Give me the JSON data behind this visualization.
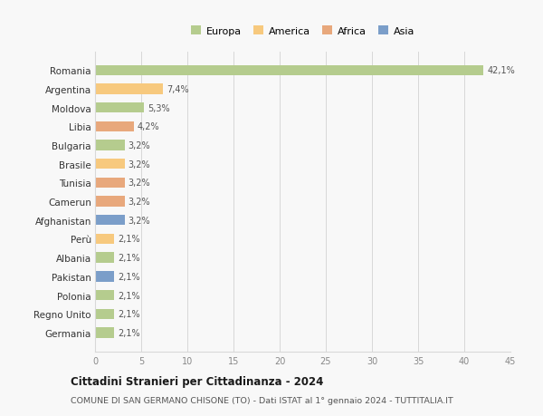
{
  "countries": [
    "Romania",
    "Argentina",
    "Moldova",
    "Libia",
    "Bulgaria",
    "Brasile",
    "Tunisia",
    "Camerun",
    "Afghanistan",
    "Perù",
    "Albania",
    "Pakistan",
    "Polonia",
    "Regno Unito",
    "Germania"
  ],
  "values": [
    42.1,
    7.4,
    5.3,
    4.2,
    3.2,
    3.2,
    3.2,
    3.2,
    3.2,
    2.1,
    2.1,
    2.1,
    2.1,
    2.1,
    2.1
  ],
  "labels": [
    "42,1%",
    "7,4%",
    "5,3%",
    "4,2%",
    "3,2%",
    "3,2%",
    "3,2%",
    "3,2%",
    "3,2%",
    "2,1%",
    "2,1%",
    "2,1%",
    "2,1%",
    "2,1%",
    "2,1%"
  ],
  "continents": [
    "Europa",
    "America",
    "Europa",
    "Africa",
    "Europa",
    "America",
    "Africa",
    "Africa",
    "Asia",
    "America",
    "Europa",
    "Asia",
    "Europa",
    "Europa",
    "Europa"
  ],
  "colors": {
    "Europa": "#b5cc8e",
    "America": "#f7c97e",
    "Africa": "#e8a87c",
    "Asia": "#7b9ec9"
  },
  "xlim": [
    0,
    45
  ],
  "xticks": [
    0,
    5,
    10,
    15,
    20,
    25,
    30,
    35,
    40,
    45
  ],
  "title": "Cittadini Stranieri per Cittadinanza - 2024",
  "subtitle": "COMUNE DI SAN GERMANO CHISONE (TO) - Dati ISTAT al 1° gennaio 2024 - TUTTITALIA.IT",
  "background_color": "#f8f8f8",
  "grid_color": "#d8d8d8"
}
